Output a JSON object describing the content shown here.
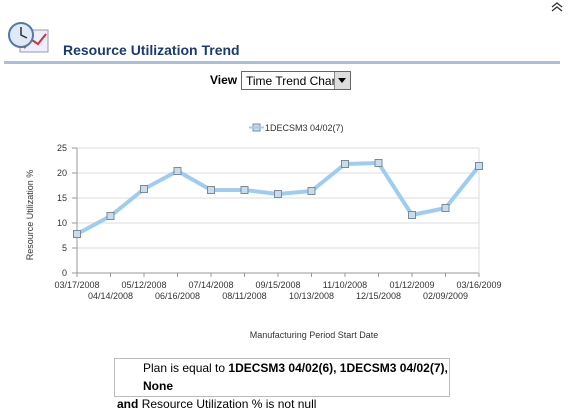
{
  "header": {
    "title": "Resource Utilization Trend"
  },
  "view": {
    "label": "View",
    "selected": "Time Trend Chart"
  },
  "chart_data": {
    "type": "line",
    "x_label": "Manufacturing Period Start Date",
    "y_label": "Resource Utilization %",
    "categories": [
      "03/17/2008",
      "04/14/2008",
      "05/12/2008",
      "06/16/2008",
      "07/14/2008",
      "08/11/2008",
      "09/15/2008",
      "10/13/2008",
      "11/10/2008",
      "12/15/2008",
      "01/12/2009",
      "02/09/2009",
      "03/16/2009"
    ],
    "series": [
      {
        "name": "1DECSM3 04/02(7)",
        "color": "#9fcdf2",
        "values": [
          7.8,
          11.4,
          16.8,
          20.4,
          16.6,
          16.6,
          15.8,
          16.4,
          21.8,
          22,
          11.6,
          13,
          21.4
        ]
      }
    ],
    "ylim": [
      0,
      25
    ],
    "yticks": [
      0,
      5,
      10,
      15,
      20,
      25
    ],
    "grid": true
  },
  "filter": {
    "parts": [
      "Plan is equal to",
      "1DECSM3 04/02(6), 1DECSM3 04/02(7), None",
      "and",
      "Resource Utilization % is not null"
    ]
  }
}
